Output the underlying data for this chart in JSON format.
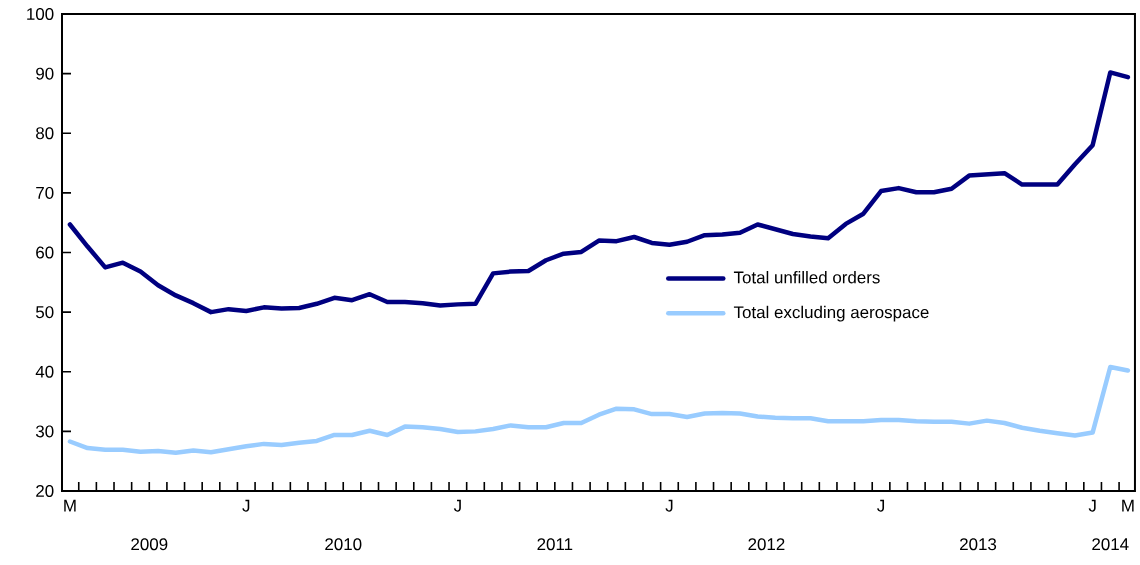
{
  "chart_data": {
    "type": "line",
    "categories": [
      "M",
      null,
      null,
      null,
      null,
      null,
      null,
      null,
      null,
      null,
      "J",
      null,
      null,
      null,
      null,
      null,
      null,
      null,
      null,
      null,
      null,
      null,
      "J",
      null,
      null,
      null,
      null,
      null,
      null,
      null,
      null,
      null,
      null,
      null,
      "J",
      null,
      null,
      null,
      null,
      null,
      null,
      null,
      null,
      null,
      null,
      null,
      "J",
      null,
      null,
      null,
      null,
      null,
      null,
      null,
      null,
      null,
      null,
      null,
      "J",
      null,
      "M"
    ],
    "series": [
      {
        "name": "Total unfilled orders",
        "color": "#000080",
        "values": [
          64.7,
          61.0,
          57.5,
          58.3,
          56.8,
          54.5,
          52.8,
          51.5,
          50.0,
          50.5,
          50.2,
          50.8,
          50.6,
          50.7,
          51.4,
          52.4,
          52.0,
          53.0,
          51.7,
          51.7,
          51.5,
          51.1,
          51.3,
          51.4,
          56.5,
          56.8,
          56.9,
          58.7,
          59.8,
          60.1,
          62.0,
          61.9,
          62.6,
          61.6,
          61.3,
          61.8,
          62.9,
          63.0,
          63.3,
          64.7,
          63.9,
          63.1,
          62.7,
          62.4,
          64.8,
          66.5,
          70.3,
          70.8,
          70.1,
          70.1,
          70.7,
          72.9,
          73.1,
          73.3,
          71.4,
          71.4,
          71.4,
          74.8,
          78.0,
          90.2,
          89.4
        ]
      },
      {
        "name": "Total excluding aerospace",
        "color": "#99ccff",
        "values": [
          28.3,
          27.2,
          26.9,
          26.9,
          26.6,
          26.7,
          26.4,
          26.8,
          26.5,
          27.0,
          27.5,
          27.9,
          27.7,
          28.1,
          28.4,
          29.4,
          29.4,
          30.1,
          29.4,
          30.8,
          30.7,
          30.4,
          29.9,
          30.0,
          30.4,
          31.0,
          30.7,
          30.7,
          31.4,
          31.4,
          32.8,
          33.8,
          33.7,
          32.9,
          32.9,
          32.4,
          33.0,
          33.1,
          33.0,
          32.5,
          32.3,
          32.2,
          32.2,
          31.7,
          31.7,
          31.7,
          31.9,
          31.9,
          31.7,
          31.6,
          31.6,
          31.3,
          31.8,
          31.4,
          30.6,
          30.1,
          29.7,
          29.3,
          29.8,
          40.8,
          40.2
        ]
      }
    ],
    "ylim": [
      20,
      100
    ],
    "yticks": [
      20,
      30,
      40,
      50,
      60,
      70,
      80,
      90,
      100
    ],
    "legend": "right",
    "annotations": [
      "2009",
      "2010",
      "2011",
      "2012",
      "2013",
      "2014"
    ]
  }
}
